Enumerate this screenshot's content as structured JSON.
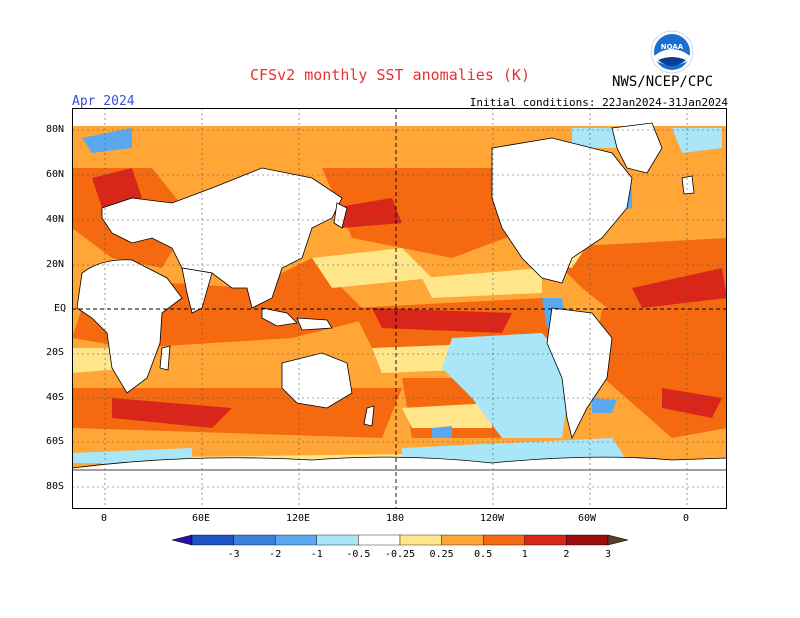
{
  "title": "CFSv2 monthly SST anomalies (K)",
  "month": "Apr 2024",
  "initial_conditions": "Initial conditions: 22Jan2024-31Jan2024",
  "agency": "NWS/NCEP/CPC",
  "logo_text": "NOAA",
  "lat_labels": [
    "80N",
    "60N",
    "40N",
    "20N",
    "EQ",
    "20S",
    "40S",
    "60S",
    "80S"
  ],
  "lon_labels": [
    "0",
    "60E",
    "120E",
    "180",
    "120W",
    "60W",
    "0"
  ],
  "colorbar": {
    "tick_labels": [
      "-3",
      "-2",
      "-1",
      "-0.5",
      "-0.25",
      "0.25",
      "0.5",
      "1",
      "2",
      "3"
    ],
    "colors": [
      "#2a0fa8",
      "#1f52c8",
      "#3b7fe0",
      "#5aa8f0",
      "#a8e6f8",
      "#ffffff",
      "#ffe68a",
      "#ffa636",
      "#f56a10",
      "#d8261a",
      "#9c0d0d",
      "#5e3a2c"
    ]
  },
  "colors": {
    "title": "#e83030",
    "month": "#3a4fd0",
    "land": "#ffffff",
    "warm": "#f56a10",
    "cool": "#a8e6f8"
  }
}
